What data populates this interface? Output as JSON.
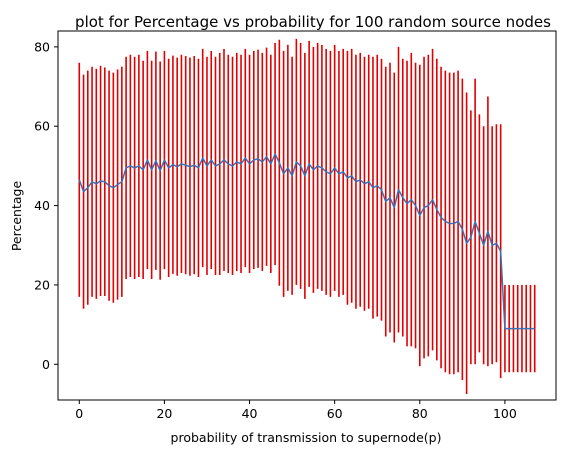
{
  "chart_data": {
    "type": "line",
    "title": "plot for Percentage vs probability for 100 random source nodes",
    "xlabel": "probability of transmission to supernode(p)",
    "ylabel": "Percentage",
    "xlim": [
      -5,
      112
    ],
    "ylim": [
      -9,
      84
    ],
    "xticks": [
      0,
      20,
      40,
      60,
      80,
      100
    ],
    "yticks": [
      0,
      20,
      40,
      60,
      80
    ],
    "grid": false,
    "colors": {
      "line": "#3a72b8",
      "errorbar": "#e00000",
      "axes": "#000000"
    },
    "series": [
      {
        "kind": "line-with-errorbars",
        "x": [
          0,
          1,
          2,
          3,
          4,
          5,
          6,
          7,
          8,
          9,
          10,
          11,
          12,
          13,
          14,
          15,
          16,
          17,
          18,
          19,
          20,
          21,
          22,
          23,
          24,
          25,
          26,
          27,
          28,
          29,
          30,
          31,
          32,
          33,
          34,
          35,
          36,
          37,
          38,
          39,
          40,
          41,
          42,
          43,
          44,
          45,
          46,
          47,
          48,
          49,
          50,
          51,
          52,
          53,
          54,
          55,
          56,
          57,
          58,
          59,
          60,
          61,
          62,
          63,
          64,
          65,
          66,
          67,
          68,
          69,
          70,
          71,
          72,
          73,
          74,
          75,
          76,
          77,
          78,
          79,
          80,
          81,
          82,
          83,
          84,
          85,
          86,
          87,
          88,
          89,
          90,
          91,
          92,
          93,
          94,
          95,
          96,
          97,
          98,
          99,
          100,
          101,
          102,
          103,
          104,
          105,
          106,
          107
        ],
        "y": [
          46.5,
          43.5,
          44.5,
          46,
          45.5,
          46.2,
          46,
          45,
          44.5,
          45.3,
          46,
          49.5,
          50,
          49.5,
          50,
          49,
          51.5,
          49,
          51.3,
          48.8,
          51.5,
          49.5,
          50.3,
          49.8,
          50.5,
          50.2,
          49.8,
          50.2,
          49.5,
          52,
          50,
          51.5,
          50,
          50.5,
          51.5,
          50.5,
          50,
          51,
          50.5,
          52,
          50.5,
          51.5,
          51.8,
          51,
          52.3,
          50.5,
          53,
          50.8,
          48,
          49.5,
          47.5,
          51,
          50,
          47.5,
          50.5,
          49,
          50,
          49.5,
          48.5,
          48,
          49.5,
          48,
          48.5,
          47,
          47.5,
          46,
          46.5,
          45.5,
          46,
          44.5,
          45,
          44,
          41,
          42,
          39.5,
          44,
          42,
          40.5,
          41.5,
          40,
          37.5,
          39.5,
          40,
          41.5,
          39,
          37,
          36,
          35.5,
          35.5,
          36,
          34,
          30.5,
          32,
          36,
          33,
          30,
          33.5,
          30,
          30.5,
          28.5,
          9,
          9,
          9,
          9,
          9,
          9,
          9,
          9
        ],
        "yerr": [
          29.5,
          29.5,
          29.5,
          29,
          29,
          29,
          28.8,
          29,
          29,
          29,
          29,
          28,
          28,
          28,
          28,
          27.5,
          27.5,
          27.5,
          27.5,
          27.5,
          27.5,
          27.5,
          27.5,
          27.5,
          27.5,
          27.5,
          27.5,
          27.5,
          27.5,
          27.5,
          27.5,
          27.5,
          27.5,
          28,
          28,
          27.5,
          27.5,
          27.5,
          27.5,
          27.5,
          27.5,
          27.5,
          27.5,
          27.5,
          27.5,
          27.5,
          28,
          31,
          31,
          31,
          30,
          31,
          31,
          31,
          31,
          31,
          31,
          31,
          31,
          31,
          31,
          31,
          31,
          32,
          32,
          32,
          32,
          32,
          32,
          33,
          33,
          33,
          34,
          34,
          34,
          36,
          35,
          36,
          37,
          36,
          38,
          38,
          38,
          38,
          38,
          38,
          38,
          38,
          38,
          38,
          38,
          38,
          32,
          36,
          30,
          30,
          34,
          30,
          30,
          32,
          11,
          11,
          11,
          11,
          11,
          11,
          11,
          11
        ]
      }
    ]
  }
}
